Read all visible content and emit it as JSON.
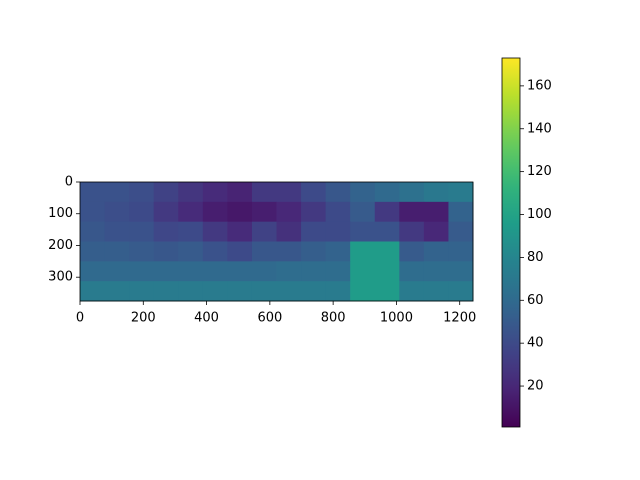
{
  "chart_data": {
    "type": "heatmap",
    "xlim": [
      0,
      1242
    ],
    "ylim": [
      375,
      0
    ],
    "xticks": [
      0,
      200,
      400,
      600,
      800,
      1000,
      1200
    ],
    "yticks": [
      0,
      100,
      200,
      300
    ],
    "colormap": "viridis",
    "clim": [
      0.9,
      173
    ],
    "cticks": [
      20,
      40,
      60,
      80,
      100,
      120,
      140,
      160
    ],
    "values": [
      [
        45,
        45,
        42,
        35,
        28,
        22,
        18,
        30,
        30,
        40,
        48,
        55,
        60,
        65,
        70,
        72
      ],
      [
        45,
        42,
        40,
        30,
        22,
        15,
        12,
        15,
        20,
        30,
        40,
        50,
        30,
        15,
        15,
        55
      ],
      [
        48,
        45,
        45,
        38,
        40,
        30,
        22,
        35,
        25,
        40,
        40,
        45,
        45,
        30,
        20,
        50
      ],
      [
        52,
        52,
        50,
        48,
        50,
        45,
        40,
        48,
        48,
        52,
        55,
        95,
        95,
        50,
        55,
        55
      ],
      [
        60,
        60,
        60,
        60,
        60,
        60,
        60,
        60,
        62,
        62,
        62,
        95,
        95,
        62,
        62,
        62
      ],
      [
        72,
        72,
        72,
        72,
        72,
        72,
        72,
        72,
        72,
        72,
        72,
        95,
        95,
        72,
        72,
        72
      ]
    ]
  }
}
